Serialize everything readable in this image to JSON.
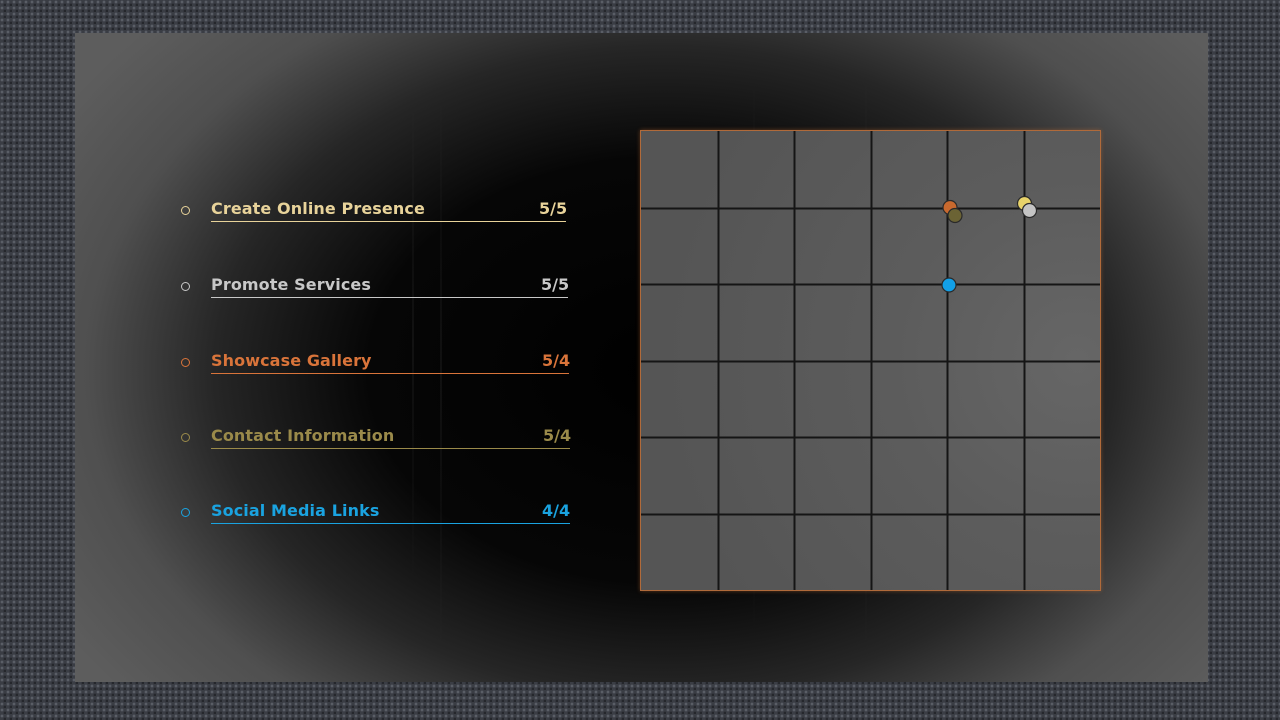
{
  "tasks": [
    {
      "label": "Create Online Presence",
      "score": "5/5",
      "color": "#e8d39a"
    },
    {
      "label": "Promote Services",
      "score": "5/5",
      "color": "#c8c8c8"
    },
    {
      "label": "Showcase Gallery",
      "score": "5/4",
      "color": "#d9743a"
    },
    {
      "label": "Contact Information",
      "score": "5/4",
      "color": "#9a8a4a"
    },
    {
      "label": "Social Media Links",
      "score": "4/4",
      "color": "#1aa3e0"
    }
  ],
  "board": {
    "columns": 6,
    "rows": 6,
    "border_color": "#b06a3a",
    "markers": [
      {
        "name": "orange-marker",
        "col": 4,
        "row": 1,
        "color": "#c8692e"
      },
      {
        "name": "olive-marker",
        "col": 4,
        "row": 1,
        "color": "#6b6334"
      },
      {
        "name": "yellow-marker",
        "col": 5,
        "row": 1,
        "color": "#e8d36a"
      },
      {
        "name": "silver-marker",
        "col": 5,
        "row": 1,
        "color": "#c4c4c4"
      },
      {
        "name": "blue-marker",
        "col": 4,
        "row": 2,
        "color": "#12a0e8"
      }
    ]
  }
}
